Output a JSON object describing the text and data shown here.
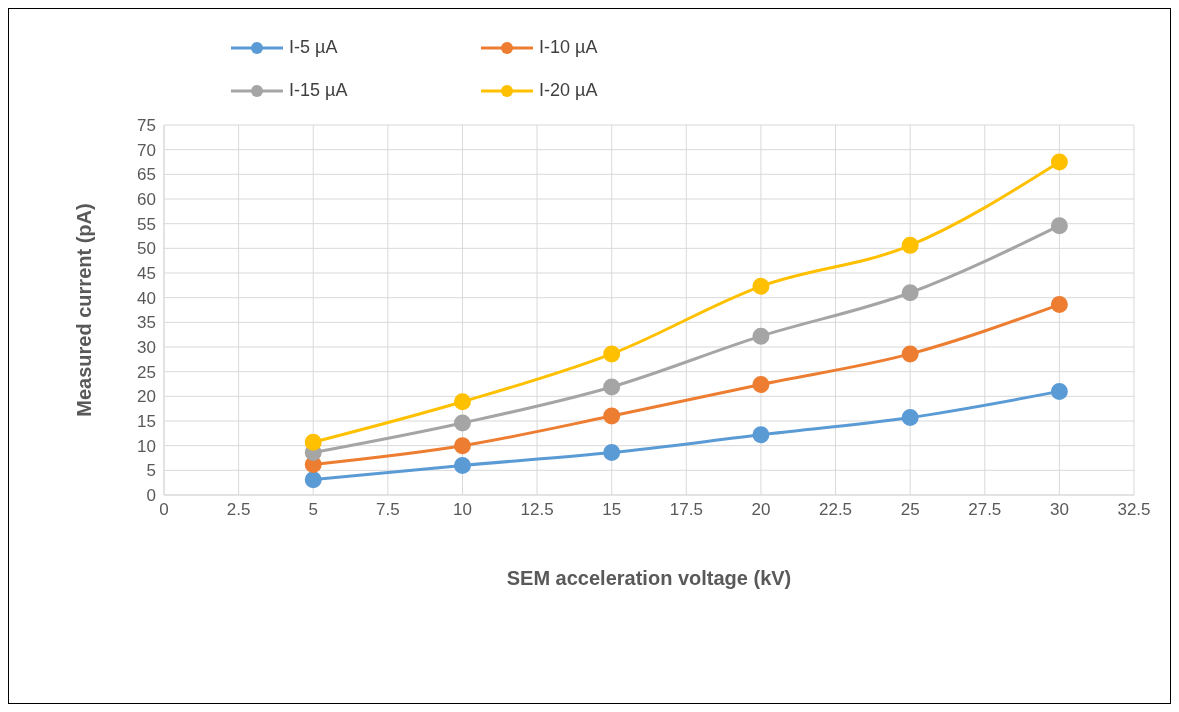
{
  "chart_data": {
    "type": "line",
    "xlabel": "SEM acceleration voltage (kV)",
    "ylabel": "Measured current (pA)",
    "x": [
      5,
      10,
      15,
      20,
      25,
      30
    ],
    "series": [
      {
        "name": "I-5 µA",
        "color": "#5b9bd5",
        "values": [
          3.1,
          6.0,
          8.6,
          12.2,
          15.7,
          21.0
        ]
      },
      {
        "name": "I-10 µA",
        "color": "#ed7d31",
        "values": [
          6.2,
          10.0,
          16.0,
          22.4,
          28.6,
          38.6
        ]
      },
      {
        "name": "I-15 µA",
        "color": "#a5a5a5",
        "values": [
          8.6,
          14.6,
          21.9,
          32.2,
          41.0,
          54.6
        ]
      },
      {
        "name": "I-20 µA",
        "color": "#ffc000",
        "values": [
          10.7,
          18.9,
          28.6,
          42.3,
          50.6,
          67.5
        ]
      }
    ],
    "xlim": [
      0,
      32.5
    ],
    "xticks": [
      0,
      2.5,
      5,
      7.5,
      10,
      12.5,
      15,
      17.5,
      20,
      22.5,
      25,
      27.5,
      30,
      32.5
    ],
    "ylim": [
      0,
      75
    ],
    "yticks": [
      0,
      5,
      10,
      15,
      20,
      25,
      30,
      35,
      40,
      45,
      50,
      55,
      60,
      65,
      70,
      75
    ],
    "grid": true,
    "legend": "top",
    "marker": "circle",
    "line_style": "solid"
  }
}
